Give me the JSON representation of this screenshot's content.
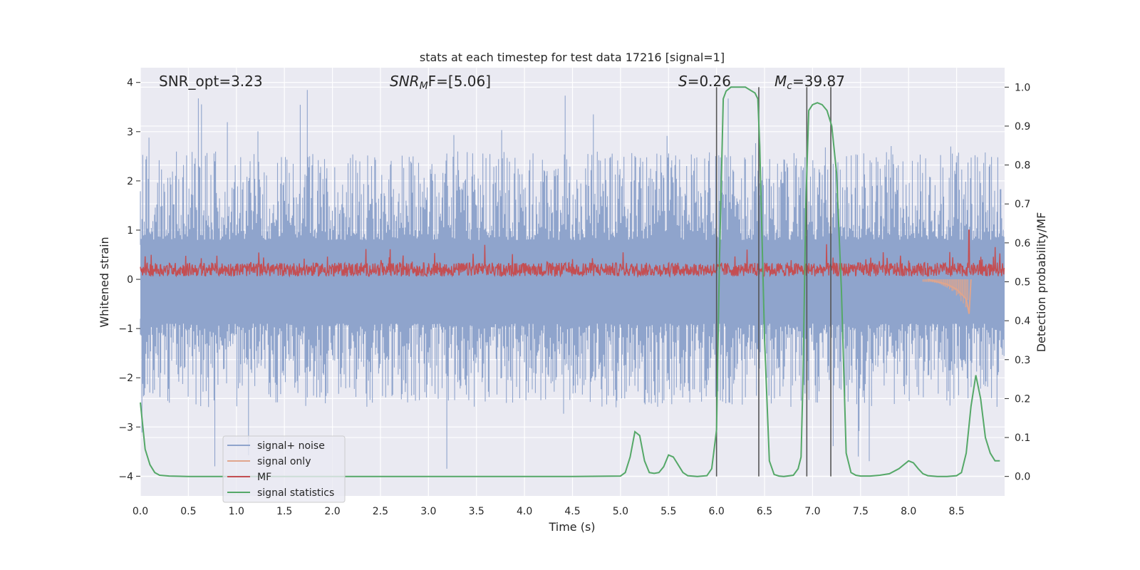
{
  "chart_data": {
    "type": "line",
    "title": "stats at each timestep for test data 17216 [signal=1]",
    "xlabel": "Time (s)",
    "ylabel": "Whitened strain",
    "ylabel_right": "Detection probability/MF",
    "xlim": [
      0.0,
      9.0
    ],
    "ylim": [
      -4.4,
      4.3
    ],
    "ylim_right": [
      -0.05,
      1.05
    ],
    "grid": true,
    "legend_position": "lower-left",
    "x_ticks": [
      "0.0",
      "0.5",
      "1.0",
      "1.5",
      "2.0",
      "2.5",
      "3.0",
      "3.5",
      "4.0",
      "4.5",
      "5.0",
      "5.5",
      "6.0",
      "6.5",
      "7.0",
      "7.5",
      "8.0",
      "8.5"
    ],
    "y_ticks": [
      "−4",
      "−3",
      "−2",
      "−1",
      "0",
      "1",
      "2",
      "3",
      "4"
    ],
    "y_ticks_right": [
      "0.0",
      "0.1",
      "0.2",
      "0.3",
      "0.4",
      "0.5",
      "0.6",
      "0.7",
      "0.8",
      "0.9",
      "1.0"
    ],
    "annotations": {
      "snr_opt": "SNR_opt=3.23",
      "snr_mf_main": "SNR",
      "snr_mf_sub": "M",
      "snr_mf_rest": "F=[5.06]",
      "s_var": "S",
      "s_rest": "=0.26",
      "mc_var": "M",
      "mc_sub": "c",
      "mc_rest": "=39.87"
    },
    "vertical_lines": [
      6.0,
      6.44,
      6.94,
      7.19
    ],
    "series": [
      {
        "name": "signal+ noise",
        "color": "#8fa4cc",
        "description_amplitude": {
          "typical_positive": [
            0.8,
            2.6
          ],
          "typical_negative": [
            -2.6,
            -0.9
          ],
          "max": 3.9,
          "min": -4.0
        }
      },
      {
        "name": "signal only",
        "color": "#e0a58c",
        "x": [
          8.2,
          8.3,
          8.4,
          8.5,
          8.55,
          8.6,
          8.63,
          8.65
        ],
        "y": [
          0.0,
          -0.05,
          -0.1,
          -0.2,
          -0.3,
          -0.4,
          -0.7,
          0.0
        ]
      },
      {
        "name": "MF",
        "color": "#c44e52",
        "range": [
          0.0,
          0.75
        ],
        "peak": {
          "x": 8.63,
          "y": 1.0
        }
      },
      {
        "name": "signal statistics",
        "color": "#55a868",
        "x": [
          0.0,
          0.05,
          0.1,
          0.15,
          0.2,
          0.3,
          0.5,
          1.0,
          2.0,
          3.0,
          4.0,
          4.5,
          5.0,
          5.05,
          5.1,
          5.15,
          5.2,
          5.25,
          5.3,
          5.35,
          5.4,
          5.45,
          5.5,
          5.55,
          5.6,
          5.65,
          5.7,
          5.8,
          5.9,
          5.95,
          6.0,
          6.03,
          6.07,
          6.1,
          6.15,
          6.2,
          6.3,
          6.4,
          6.43,
          6.45,
          6.5,
          6.55,
          6.6,
          6.65,
          6.7,
          6.8,
          6.85,
          6.88,
          6.9,
          6.93,
          6.96,
          7.0,
          7.05,
          7.1,
          7.15,
          7.2,
          7.25,
          7.3,
          7.35,
          7.4,
          7.45,
          7.5,
          7.6,
          7.7,
          7.8,
          7.9,
          8.0,
          8.05,
          8.1,
          8.15,
          8.2,
          8.3,
          8.4,
          8.5,
          8.55,
          8.6,
          8.65,
          8.7,
          8.75,
          8.8,
          8.85,
          8.9,
          8.95
        ],
        "y": [
          0.19,
          0.07,
          0.03,
          0.01,
          0.003,
          0.001,
          0.0,
          0.0,
          0.0,
          0.0,
          0.0,
          0.0,
          0.001,
          0.01,
          0.05,
          0.115,
          0.105,
          0.04,
          0.01,
          0.008,
          0.01,
          0.025,
          0.055,
          0.05,
          0.03,
          0.01,
          0.002,
          0.0,
          0.002,
          0.02,
          0.12,
          0.55,
          0.97,
          0.99,
          1.0,
          1.0,
          1.0,
          0.985,
          0.97,
          0.85,
          0.35,
          0.04,
          0.005,
          0.001,
          0.0,
          0.003,
          0.02,
          0.05,
          0.25,
          0.7,
          0.94,
          0.955,
          0.96,
          0.955,
          0.94,
          0.9,
          0.78,
          0.48,
          0.06,
          0.01,
          0.003,
          0.001,
          0.001,
          0.003,
          0.007,
          0.02,
          0.04,
          0.035,
          0.02,
          0.007,
          0.002,
          0.0,
          0.0,
          0.002,
          0.01,
          0.06,
          0.18,
          0.26,
          0.2,
          0.1,
          0.06,
          0.04,
          0.04
        ]
      }
    ]
  }
}
